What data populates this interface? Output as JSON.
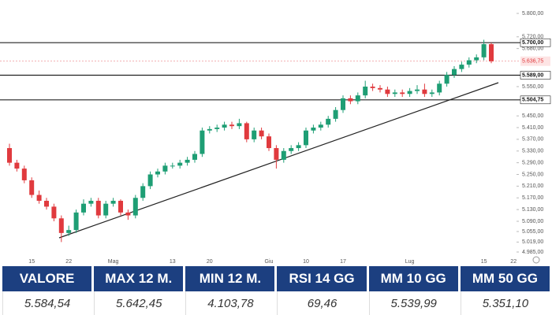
{
  "chart_data": {
    "type": "candlestick",
    "categories": [
      null,
      null,
      null,
      "15",
      null,
      null,
      null,
      null,
      "22",
      null,
      null,
      null,
      null,
      null,
      "Mag",
      null,
      null,
      null,
      null,
      null,
      null,
      null,
      "13",
      null,
      null,
      null,
      null,
      "20",
      null,
      null,
      null,
      null,
      null,
      null,
      null,
      "Giu",
      null,
      null,
      null,
      null,
      "10",
      null,
      null,
      null,
      null,
      "17",
      null,
      null,
      null,
      null,
      null,
      null,
      null,
      null,
      "Lug",
      null,
      null,
      null,
      null,
      null,
      null,
      null,
      null,
      null,
      "15",
      null,
      null,
      null,
      "22"
    ],
    "open": [
      5340,
      5290,
      5270,
      5230,
      5180,
      5160,
      5140,
      5100,
      5050,
      5060,
      5120,
      5150,
      5160,
      5110,
      5150,
      5160,
      5120,
      5110,
      5170,
      5210,
      5250,
      5260,
      5280,
      5280,
      5290,
      5300,
      5320,
      5400,
      5405,
      5410,
      5420,
      5415,
      5425,
      5370,
      5400,
      5380,
      5340,
      5300,
      5330,
      5340,
      5350,
      5400,
      5410,
      5420,
      5440,
      5470,
      5510,
      5500,
      5520,
      5550,
      5545,
      5540,
      5525,
      5530,
      5525,
      5535,
      5540,
      5525,
      5530,
      5560,
      5590,
      5610,
      5625,
      5640,
      5650,
      5695,
      null,
      null,
      null
    ],
    "high": [
      5355,
      5300,
      5280,
      5240,
      5195,
      5170,
      5150,
      5110,
      5075,
      5130,
      5165,
      5170,
      5170,
      5160,
      5170,
      5165,
      5130,
      5180,
      5220,
      5260,
      5270,
      5290,
      5290,
      5300,
      5310,
      5330,
      5410,
      5415,
      5420,
      5430,
      5430,
      5440,
      5430,
      5410,
      5410,
      5390,
      5350,
      5340,
      5350,
      5360,
      5410,
      5420,
      5430,
      5450,
      5480,
      5520,
      5520,
      5530,
      5570,
      5560,
      5555,
      5550,
      5540,
      5540,
      5545,
      5555,
      5560,
      5540,
      5570,
      5600,
      5620,
      5635,
      5650,
      5660,
      5710,
      5700,
      null,
      null,
      null
    ],
    "low": [
      5280,
      5260,
      5220,
      5170,
      5150,
      5130,
      5090,
      5019,
      5040,
      5050,
      5110,
      5140,
      5100,
      5100,
      5140,
      5110,
      5095,
      5100,
      5160,
      5200,
      5240,
      5250,
      5270,
      5270,
      5280,
      5290,
      5310,
      5390,
      5395,
      5400,
      5405,
      5405,
      5360,
      5360,
      5370,
      5330,
      5270,
      5290,
      5320,
      5330,
      5340,
      5390,
      5400,
      5410,
      5430,
      5460,
      5490,
      5490,
      5510,
      5535,
      5530,
      5515,
      5515,
      5515,
      5515,
      5525,
      5515,
      5515,
      5520,
      5550,
      5580,
      5600,
      5615,
      5630,
      5640,
      5630,
      null,
      null,
      null
    ],
    "close": [
      5290,
      5270,
      5230,
      5180,
      5160,
      5140,
      5100,
      5050,
      5060,
      5120,
      5150,
      5160,
      5110,
      5150,
      5160,
      5120,
      5110,
      5170,
      5210,
      5250,
      5260,
      5280,
      5280,
      5290,
      5300,
      5320,
      5400,
      5405,
      5410,
      5420,
      5415,
      5425,
      5370,
      5400,
      5380,
      5340,
      5300,
      5330,
      5340,
      5350,
      5400,
      5410,
      5420,
      5440,
      5470,
      5510,
      5500,
      5520,
      5550,
      5545,
      5540,
      5525,
      5530,
      5525,
      5535,
      5540,
      5525,
      5530,
      5560,
      5590,
      5610,
      5625,
      5640,
      5650,
      5695,
      5636.75,
      null,
      null,
      null
    ],
    "up_color": "#1e9e74",
    "down_color": "#e03a3e",
    "ylim": [
      4970,
      5820
    ],
    "yticks": [
      {
        "value": 5800,
        "label": "5.800,00"
      },
      {
        "value": 5720,
        "label": "5.720,00"
      },
      {
        "value": 5680,
        "label": "5.680,00"
      },
      {
        "value": 5550,
        "label": "5.550,00"
      },
      {
        "value": 5450,
        "label": "5.450,00"
      },
      {
        "value": 5410,
        "label": "5.410,00"
      },
      {
        "value": 5370,
        "label": "5.370,00"
      },
      {
        "value": 5330,
        "label": "5.330,00"
      },
      {
        "value": 5290,
        "label": "5.290,00"
      },
      {
        "value": 5250,
        "label": "5.250,00"
      },
      {
        "value": 5210,
        "label": "5.210,00"
      },
      {
        "value": 5170,
        "label": "5.170,00"
      },
      {
        "value": 5130,
        "label": "5.130,00"
      },
      {
        "value": 5090,
        "label": "5.090,00"
      },
      {
        "value": 5055,
        "label": "5.055,00"
      },
      {
        "value": 5019,
        "label": "5.019,00"
      },
      {
        "value": 4985,
        "label": "4.985,00"
      }
    ],
    "levels": [
      {
        "value": 5700,
        "label": "5.700,00"
      },
      {
        "value": 5589,
        "label": "5.589,00"
      },
      {
        "value": 5504.75,
        "label": "5.504,75"
      }
    ],
    "last_price": {
      "value": 5636.75,
      "label": "5.636,75"
    },
    "grid": false
  },
  "table": {
    "headers": [
      "VALORE",
      "MAX 12 M.",
      "MIN 12 M.",
      "RSI 14 GG",
      "MM 10 GG",
      "MM 50 GG"
    ],
    "values": [
      "5.584,54",
      "5.642,45",
      "4.103,78",
      "69,46",
      "5.539,99",
      "5.351,10"
    ]
  }
}
